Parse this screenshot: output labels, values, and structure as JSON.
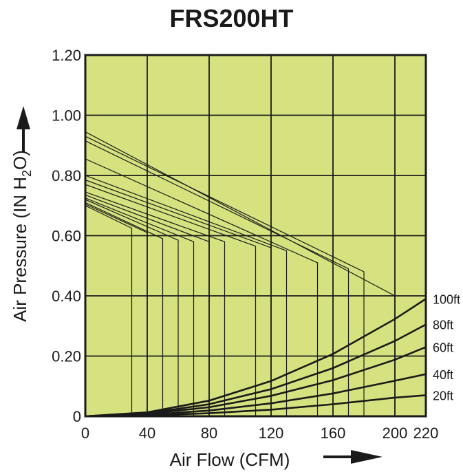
{
  "chart_data": {
    "type": "line",
    "title": "FRS200HT",
    "xlabel": "Air Flow (CFM)",
    "ylabel": {
      "prefix": "Air Pressure (IN H",
      "sub": "2",
      "suffix": "O)"
    },
    "xlim": [
      0,
      220
    ],
    "ylim": [
      0,
      1.2
    ],
    "x_ticks": [
      0,
      40,
      80,
      120,
      160,
      200,
      220
    ],
    "x_tick_labels": [
      "0",
      "40",
      "80",
      "120",
      "160",
      "200",
      "220"
    ],
    "y_ticks": [
      0,
      0.2,
      0.4,
      0.6,
      0.8,
      1.0,
      1.2
    ],
    "y_tick_labels": [
      "0",
      "0.20",
      "0.40",
      "0.60",
      "0.80",
      "1.00",
      "1.20"
    ],
    "grid": true,
    "background_color": "#d6e27f",
    "line_color": "#1a1a1a",
    "system_curves": [
      {
        "name": "100ft",
        "points": [
          [
            0,
            0
          ],
          [
            40,
            0.013
          ],
          [
            80,
            0.052
          ],
          [
            120,
            0.117
          ],
          [
            160,
            0.207
          ],
          [
            200,
            0.323
          ],
          [
            220,
            0.39
          ]
        ]
      },
      {
        "name": "80ft",
        "points": [
          [
            0,
            0
          ],
          [
            40,
            0.01
          ],
          [
            80,
            0.04
          ],
          [
            120,
            0.09
          ],
          [
            160,
            0.16
          ],
          [
            200,
            0.25
          ],
          [
            220,
            0.305
          ]
        ]
      },
      {
        "name": "60ft",
        "points": [
          [
            0,
            0
          ],
          [
            40,
            0.008
          ],
          [
            80,
            0.03
          ],
          [
            120,
            0.068
          ],
          [
            160,
            0.12
          ],
          [
            200,
            0.188
          ],
          [
            220,
            0.23
          ]
        ]
      },
      {
        "name": "40ft",
        "points": [
          [
            0,
            0
          ],
          [
            40,
            0.005
          ],
          [
            80,
            0.019
          ],
          [
            120,
            0.043
          ],
          [
            160,
            0.076
          ],
          [
            200,
            0.118
          ],
          [
            220,
            0.14
          ]
        ]
      },
      {
        "name": "20ft",
        "points": [
          [
            0,
            0
          ],
          [
            40,
            0.003
          ],
          [
            80,
            0.01
          ],
          [
            120,
            0.022
          ],
          [
            160,
            0.04
          ],
          [
            200,
            0.062
          ],
          [
            220,
            0.07
          ]
        ]
      }
    ],
    "fan_curves": [
      {
        "points": [
          [
            0,
            0.945
          ],
          [
            200,
            0.4
          ],
          [
            200,
            0
          ]
        ]
      },
      {
        "points": [
          [
            0,
            0.93
          ],
          [
            180,
            0.48
          ],
          [
            180,
            0
          ]
        ]
      },
      {
        "points": [
          [
            0,
            0.915
          ],
          [
            170,
            0.49
          ],
          [
            170,
            0
          ]
        ]
      },
      {
        "points": [
          [
            0,
            0.855
          ],
          [
            150,
            0.51
          ],
          [
            150,
            0
          ]
        ]
      },
      {
        "points": [
          [
            0,
            0.8
          ],
          [
            130,
            0.55
          ],
          [
            130,
            0
          ]
        ]
      },
      {
        "points": [
          [
            0,
            0.785
          ],
          [
            120,
            0.56
          ],
          [
            120,
            0
          ]
        ]
      },
      {
        "points": [
          [
            0,
            0.77
          ],
          [
            110,
            0.565
          ],
          [
            110,
            0
          ]
        ]
      },
      {
        "points": [
          [
            0,
            0.745
          ],
          [
            90,
            0.58
          ],
          [
            90,
            0
          ]
        ]
      },
      {
        "points": [
          [
            0,
            0.735
          ],
          [
            80,
            0.58
          ],
          [
            80,
            0
          ]
        ]
      },
      {
        "points": [
          [
            0,
            0.725
          ],
          [
            70,
            0.58
          ],
          [
            70,
            0
          ]
        ]
      },
      {
        "points": [
          [
            0,
            0.72
          ],
          [
            60,
            0.585
          ],
          [
            60,
            0
          ]
        ]
      },
      {
        "points": [
          [
            0,
            0.71
          ],
          [
            50,
            0.59
          ],
          [
            50,
            0
          ]
        ]
      },
      {
        "points": [
          [
            0,
            0.705
          ],
          [
            40,
            0.61
          ],
          [
            40,
            0
          ]
        ]
      },
      {
        "points": [
          [
            0,
            0.7
          ],
          [
            30,
            0.625
          ],
          [
            30,
            0
          ]
        ]
      }
    ]
  }
}
